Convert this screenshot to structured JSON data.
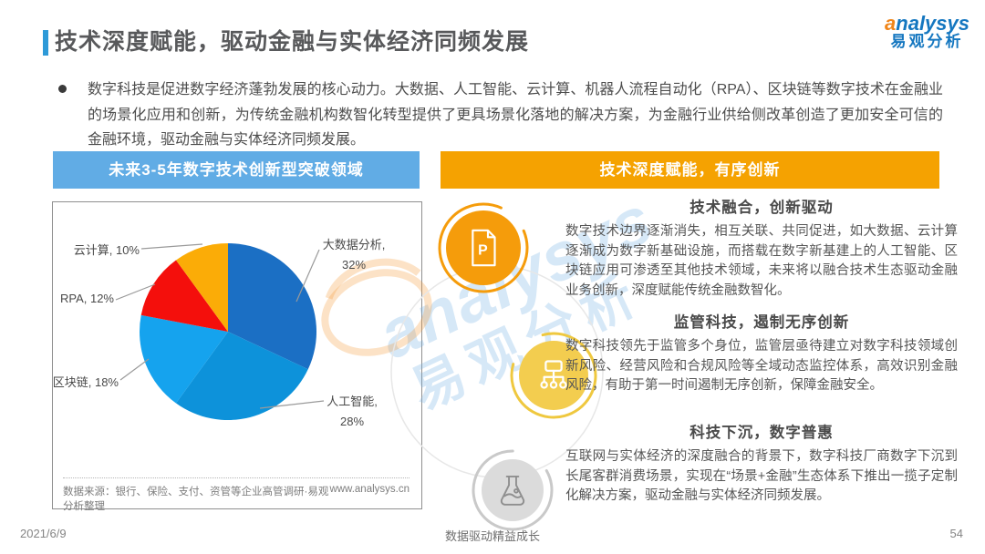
{
  "header": {
    "title": "技术深度赋能，驱动金融与实体经济同频发展",
    "logo": {
      "brand": "analysys",
      "brand_cn": "易观分析"
    }
  },
  "intro": {
    "text": "数字科技是促进数字经济蓬勃发展的核心动力。大数据、人工智能、云计算、机器人流程自动化（RPA）、区块链等数字技术在金融业的场景化应用和创新，为传统金融机构数智化转型提供了更具场景化落地的解决方案，为金融行业供给侧改革创造了更加安全可信的金融环境，驱动金融与实体经济同频发展。"
  },
  "left_panel": {
    "header": "未来3-5年数字技术创新型突破领域",
    "source": "数据来源：银行、保险、支付、资管等企业高管调研·易观分析整理",
    "website": "www.analysys.cn"
  },
  "chart_data": {
    "type": "pie",
    "title": "未来3-5年数字技术创新型突破领域",
    "categories": [
      "大数据分析",
      "人工智能",
      "区块链",
      "RPA",
      "云计算"
    ],
    "values": [
      32,
      28,
      18,
      12,
      10
    ],
    "unit": "%",
    "colors": [
      "#1b6fc4",
      "#0d92da",
      "#15a3ee",
      "#f40f0c",
      "#fbac07"
    ],
    "start_angle": "12-o-clock",
    "direction": "clockwise",
    "legend_position": "callout-labels",
    "display_labels": {
      "bigdata_l1": "大数据分析,",
      "bigdata_l2": "32%",
      "ai_l1": "人工智能,",
      "ai_l2": "28%",
      "blockchain": "区块链, 18%",
      "rpa": "RPA, 12%",
      "cloud": "云计算, 10%"
    }
  },
  "right_panel": {
    "header": "技术深度赋能，有序创新",
    "blocks": [
      {
        "icon": "document-p-icon",
        "title": "技术融合，创新驱动",
        "body": "数字技术边界逐渐消失，相互关联、共同促进，如大数据、云计算逐渐成为数字新基础设施，而搭载在数字新基建上的人工智能、区块链应用可渗透至其他技术领域，未来将以融合技术生态驱动金融业务创新，深度赋能传统金融数智化。"
      },
      {
        "icon": "org-chart-icon",
        "title": "监管科技，遏制无序创新",
        "body": "数字科技领先于监管多个身位，监管层亟待建立对数字科技领域创新风险、经营风险和合规风险等全域动态监控体系，高效识别金融风险，有助于第一时间遏制无序创新，保障金融安全。"
      },
      {
        "icon": "flask-icon",
        "title": "科技下沉，数字普惠",
        "body": "互联网与实体经济的深度融合的背景下，数字科技厂商数字下沉到长尾客群消费场景，实现在“场景+金融”生态体系下推出一揽子定制化解决方案，驱动金融与实体经济同频发展。"
      }
    ]
  },
  "watermark": {
    "line1": "analysys",
    "line2": "易观分析"
  },
  "footer": {
    "date": "2021/6/9",
    "center": "数据驱动精益成长",
    "page": "54"
  }
}
